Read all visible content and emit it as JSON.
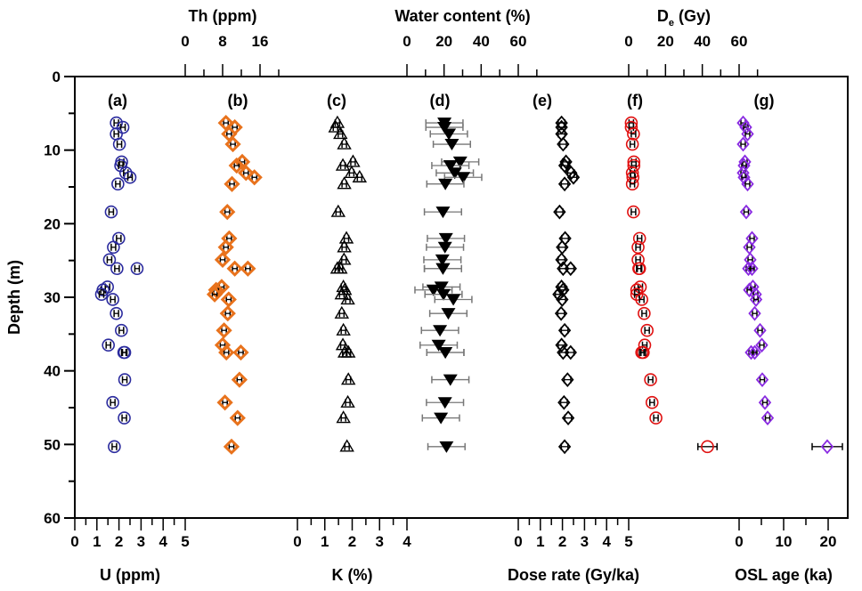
{
  "chart_data": {
    "type": "scatter",
    "ylabel": "Depth (m)",
    "ylim": [
      60,
      0
    ],
    "yticks": [
      "0",
      "10",
      "20",
      "30",
      "40",
      "50",
      "60"
    ],
    "grid": false,
    "legend": "none",
    "depths": [
      6.3,
      6.9,
      7.8,
      9.2,
      11.6,
      12.1,
      13.1,
      13.7,
      14.6,
      18.4,
      22.0,
      23.2,
      24.9,
      26.1,
      26.1,
      28.6,
      29.0,
      29.6,
      30.3,
      32.2,
      34.5,
      36.5,
      37.5,
      37.5,
      41.2,
      44.3,
      46.4,
      50.3
    ],
    "panels": [
      {
        "id": "U",
        "panel_label": "(a)",
        "axis_label": "U (ppm)",
        "axis_position": "bottom",
        "xlim": [
          0,
          5
        ],
        "ticks": [
          "0",
          "1",
          "2",
          "3",
          "4",
          "5"
        ],
        "marker": "circle",
        "color": "#2b2b9e",
        "error": 0.1,
        "values": [
          1.88,
          2.18,
          1.88,
          2.02,
          2.12,
          2.08,
          2.31,
          2.5,
          1.95,
          1.65,
          1.99,
          1.75,
          1.57,
          1.91,
          2.82,
          1.48,
          1.28,
          1.21,
          1.72,
          1.88,
          2.11,
          1.52,
          2.22,
          2.26,
          2.26,
          1.72,
          2.24,
          1.79
        ]
      },
      {
        "id": "Th",
        "panel_label": "(b)",
        "axis_label": "Th (ppm)",
        "axis_position": "top",
        "xlim": [
          0,
          24
        ],
        "ticks": [
          "0",
          "8",
          "16"
        ],
        "marker": "diamond",
        "color": "#e8721c",
        "error": 0.5,
        "values": [
          8.7,
          10.6,
          9.4,
          10.2,
          12.2,
          11.0,
          13.0,
          14.8,
          10.0,
          9.0,
          9.4,
          8.7,
          8.0,
          10.6,
          13.4,
          7.8,
          6.6,
          6.3,
          9.3,
          9.1,
          8.3,
          8.0,
          8.8,
          11.9,
          11.6,
          8.5,
          11.2,
          9.9
        ]
      },
      {
        "id": "K",
        "panel_label": "(c)",
        "axis_label": "K (%)",
        "axis_position": "bottom",
        "xlim": [
          0,
          4
        ],
        "ticks": [
          "0",
          "1",
          "2",
          "3",
          "4"
        ],
        "marker": "triangle",
        "color": "#000000",
        "error": 0.08,
        "values": [
          1.46,
          1.39,
          1.57,
          1.71,
          2.03,
          1.66,
          1.98,
          2.27,
          1.71,
          1.49,
          1.79,
          1.71,
          1.7,
          1.46,
          1.57,
          1.68,
          1.73,
          1.62,
          1.84,
          1.62,
          1.68,
          1.66,
          1.73,
          1.86,
          1.86,
          1.84,
          1.68,
          1.81
        ]
      },
      {
        "id": "water",
        "panel_label": "(d)",
        "axis_label": "Water content (%)",
        "axis_position": "top",
        "xlim": [
          0,
          60
        ],
        "ticks": [
          "0",
          "20",
          "40",
          "60"
        ],
        "marker": "triangle-down-filled",
        "color": "#000000",
        "error": 10,
        "values": [
          20.2,
          20.2,
          22.6,
          24.2,
          28.7,
          23.4,
          25.8,
          30.3,
          20.7,
          19.4,
          21.0,
          20.5,
          19.1,
          19.4,
          19.4,
          18.6,
          14.3,
          19.7,
          25.0,
          22.3,
          17.8,
          17.1,
          20.7,
          20.7,
          23.4,
          20.5,
          18.3,
          21.3
        ]
      },
      {
        "id": "dose",
        "panel_label": "(e)",
        "axis_label": "Dose rate (Gy/ka)",
        "axis_position": "bottom",
        "xlim": [
          0,
          5
        ],
        "ticks": [
          "0",
          "1",
          "2",
          "3",
          "4",
          "5"
        ],
        "marker": "diamond-open",
        "color": "#000000",
        "error": 0.15,
        "values": [
          1.96,
          1.96,
          1.96,
          2.03,
          2.16,
          2.1,
          2.39,
          2.5,
          2.1,
          1.87,
          2.12,
          1.99,
          1.96,
          2.03,
          2.37,
          1.96,
          2.03,
          1.83,
          1.99,
          1.94,
          2.1,
          1.96,
          2.03,
          2.37,
          2.23,
          2.07,
          2.26,
          2.1
        ]
      },
      {
        "id": "De",
        "panel_label": "(f)",
        "axis_label_main": "D",
        "axis_label_sub": "e",
        "axis_label_unit": " (Gy)",
        "axis_position": "top",
        "xlim": [
          0,
          60
        ],
        "ticks": [
          "0",
          "20",
          "40",
          "60"
        ],
        "marker": "circle",
        "color": "#e01010",
        "error": 0.6,
        "last_error": 5.2,
        "values": [
          1.4,
          1.4,
          2.6,
          2.0,
          2.8,
          2.8,
          2.0,
          2.3,
          2.0,
          2.6,
          5.9,
          5.1,
          5.1,
          5.5,
          5.9,
          6.3,
          4.4,
          4.4,
          7.1,
          8.4,
          10.0,
          8.7,
          7.1,
          7.9,
          11.9,
          12.7,
          14.8,
          42.8
        ]
      },
      {
        "id": "OSL",
        "panel_label": "(g)",
        "axis_label": "OSL age (ka)",
        "axis_position": "bottom",
        "xlim": [
          0,
          24.4
        ],
        "ticks": [
          "0",
          "10",
          "20"
        ],
        "marker": "diamond-open",
        "color": "#8a2be2",
        "error": 0.3,
        "last_error": 3.4,
        "values": [
          0.9,
          1.5,
          1.9,
          0.9,
          1.3,
          1.1,
          0.9,
          1.1,
          1.9,
          1.6,
          2.9,
          2.3,
          2.5,
          2.1,
          2.9,
          3.1,
          2.3,
          3.7,
          3.8,
          3.5,
          4.7,
          5.1,
          2.7,
          3.5,
          5.2,
          5.8,
          6.4,
          19.8
        ]
      }
    ]
  }
}
